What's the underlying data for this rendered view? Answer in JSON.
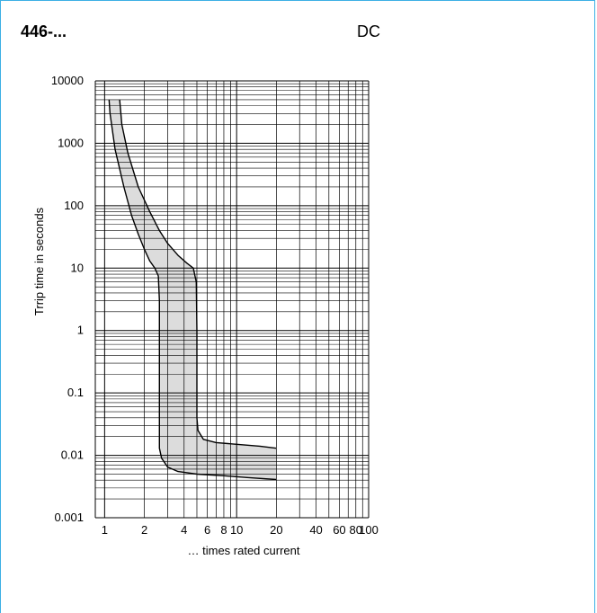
{
  "header": {
    "title": "446-...",
    "mode": "DC"
  },
  "colors": {
    "frame_border": "#3db0e4",
    "band_fill": "#dcdcdc",
    "grid_line": "#000000",
    "curve": "#000000"
  },
  "chart_data": {
    "type": "area",
    "title": "",
    "xlabel": "… times rated current",
    "ylabel": "Trrip time in seconds",
    "x_scale": "log",
    "y_scale": "log",
    "xlim": [
      0.85,
      100
    ],
    "ylim": [
      0.001,
      10000
    ],
    "grid": true,
    "x_ticks": [
      1,
      2,
      4,
      6,
      8,
      10,
      20,
      40,
      60,
      80,
      100
    ],
    "x_tick_labels": [
      "1",
      "2",
      "4",
      "6",
      "8",
      "10",
      "20",
      "40",
      "60",
      "80",
      "100"
    ],
    "y_ticks": [
      0.001,
      0.01,
      0.1,
      1,
      10,
      100,
      1000,
      10000
    ],
    "y_tick_labels": [
      "0.001",
      "0.01",
      "0.1",
      "1",
      "10",
      "100",
      "1000",
      "10000"
    ],
    "series": [
      {
        "values": [
          [
            1.08,
            5000
          ],
          [
            1.1,
            3000
          ],
          [
            1.2,
            800
          ],
          [
            1.4,
            200
          ],
          [
            1.6,
            70
          ],
          [
            1.8,
            35
          ],
          [
            2.0,
            20
          ],
          [
            2.2,
            13
          ],
          [
            2.4,
            10
          ],
          [
            2.55,
            7.5
          ],
          [
            2.6,
            3
          ],
          [
            2.6,
            0.3
          ],
          [
            2.6,
            0.05
          ],
          [
            2.6,
            0.013
          ],
          [
            2.7,
            0.009
          ],
          [
            3.0,
            0.0065
          ],
          [
            3.6,
            0.0055
          ],
          [
            5.0,
            0.005
          ],
          [
            8.0,
            0.0047
          ],
          [
            12,
            0.0044
          ],
          [
            20,
            0.0041
          ]
        ]
      },
      {
        "values": [
          [
            1.3,
            5000
          ],
          [
            1.35,
            2000
          ],
          [
            1.5,
            700
          ],
          [
            1.8,
            200
          ],
          [
            2.2,
            80
          ],
          [
            2.6,
            40
          ],
          [
            3.0,
            25
          ],
          [
            3.6,
            16
          ],
          [
            4.2,
            12
          ],
          [
            4.7,
            10
          ],
          [
            4.95,
            6
          ],
          [
            5.0,
            1
          ],
          [
            5.0,
            0.1
          ],
          [
            5.0,
            0.04
          ],
          [
            5.1,
            0.025
          ],
          [
            5.6,
            0.018
          ],
          [
            7.0,
            0.016
          ],
          [
            10,
            0.015
          ],
          [
            15,
            0.014
          ],
          [
            20,
            0.013
          ]
        ]
      }
    ]
  }
}
